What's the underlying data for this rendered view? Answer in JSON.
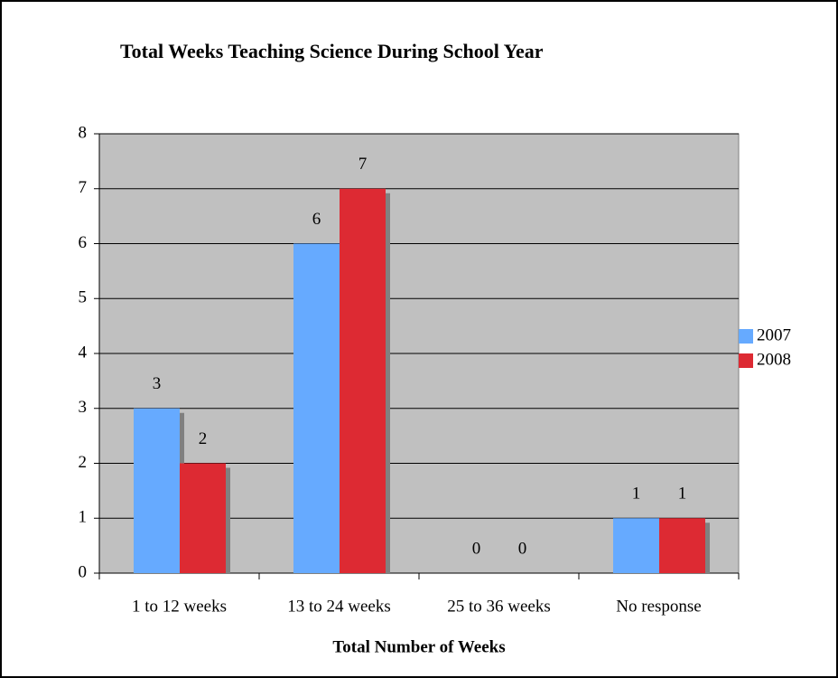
{
  "chart_data": {
    "type": "bar",
    "title": "Total Weeks Teaching Science During School Year",
    "x_label": "Total Number of Weeks",
    "categories": [
      "1 to 12 weeks",
      "13 to 24 weeks",
      "25 to 36 weeks",
      "No response"
    ],
    "series": [
      {
        "name": "2007",
        "color": "#66aaff",
        "values": [
          3,
          6,
          0,
          1
        ]
      },
      {
        "name": "2008",
        "color": "#dd2a33",
        "values": [
          2,
          7,
          0,
          1
        ]
      }
    ],
    "ylim": [
      0,
      8
    ],
    "yticks": [
      0,
      1,
      2,
      3,
      4,
      5,
      6,
      7,
      8
    ],
    "grid": true,
    "legend": "right",
    "plot_background": "#c0c0c0"
  }
}
